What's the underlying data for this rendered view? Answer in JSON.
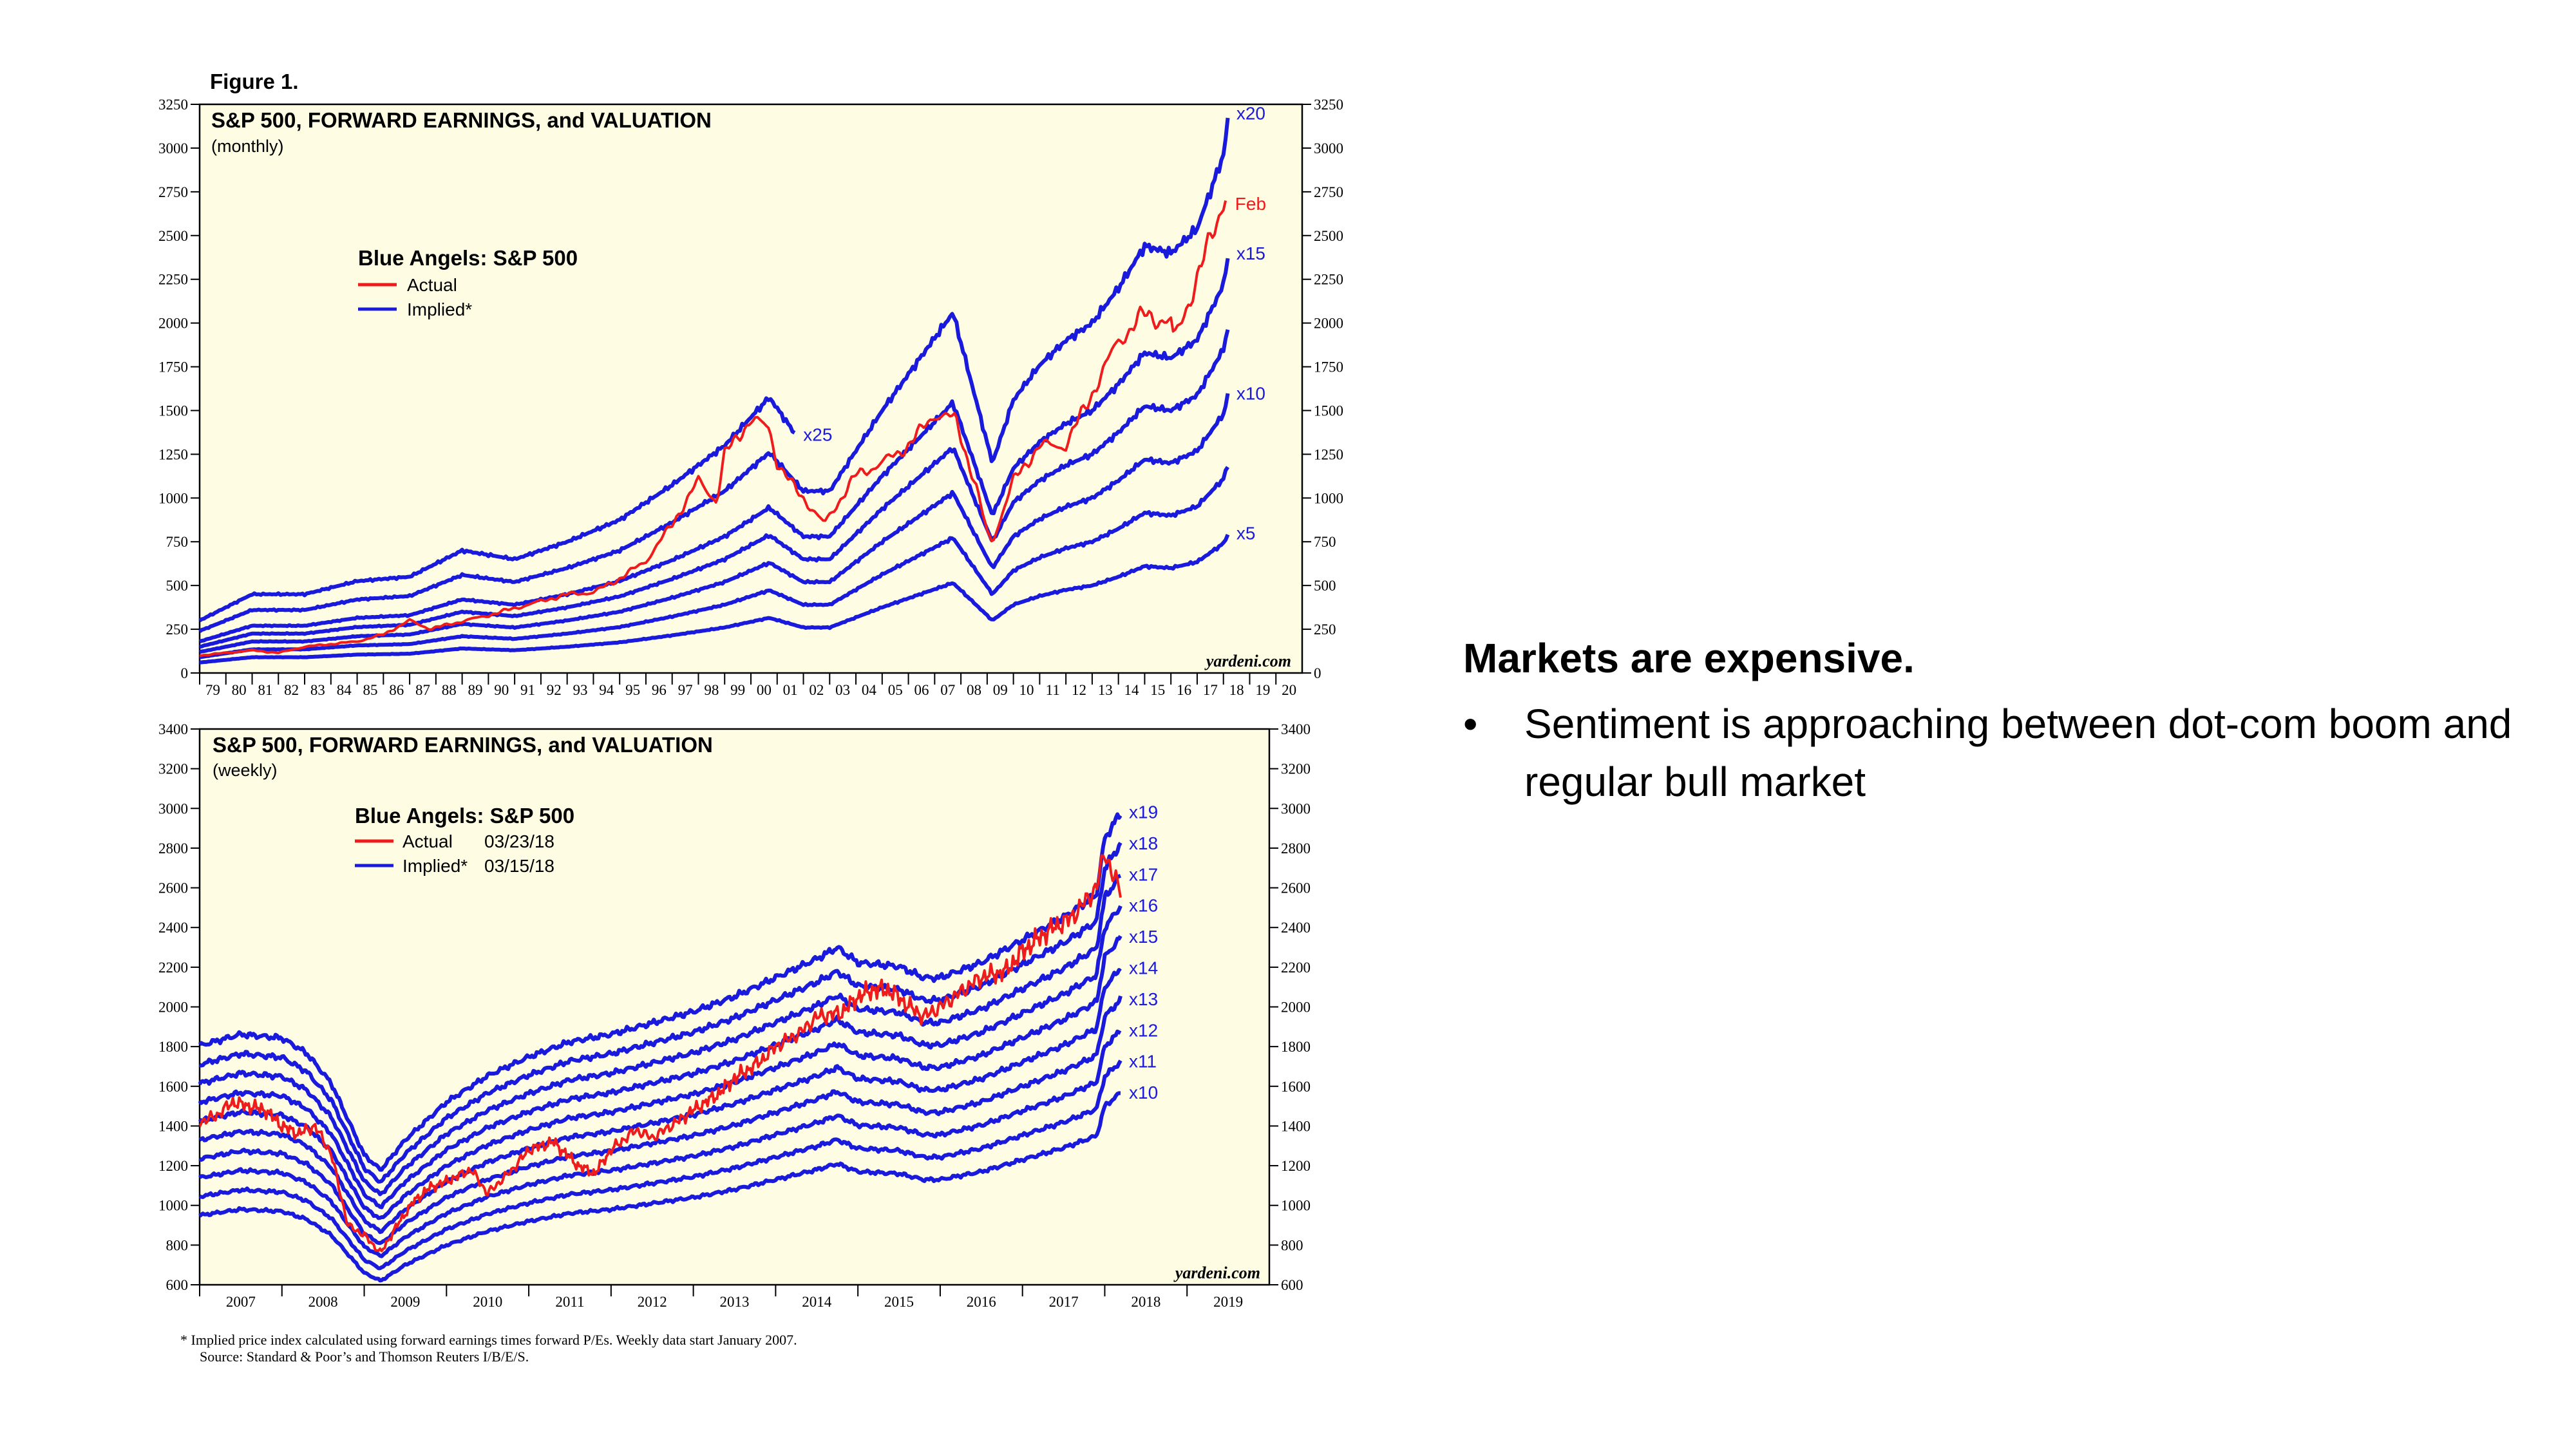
{
  "figure": {
    "label": "Figure 1.",
    "footnote_line1": "*   Implied price index calculated using forward earnings times forward P/Es. Weekly data start January 2007.",
    "footnote_line2": "Source: Standard & Poor’s and Thomson Reuters I/B/E/S."
  },
  "side": {
    "heading": "Markets are expensive.",
    "bullet_symbol": "•",
    "bullets": [
      "Sentiment is approaching between dot-com boom and regular bull market"
    ]
  },
  "colors": {
    "actual": "#ee1c1c",
    "implied": "#1a1adc",
    "panel_bg": "#fefde3",
    "text_blue": "#1a1adc"
  },
  "chart_data": [
    {
      "type": "line",
      "title": "S&P 500, FORWARD EARNINGS, and VALUATION",
      "subtitle": "(monthly)",
      "legend_title": "Blue Angels: S&P 500",
      "legend": [
        "Actual",
        "Implied*"
      ],
      "watermark": "yardeni.com",
      "x_tick_labels": [
        "79",
        "80",
        "81",
        "82",
        "83",
        "84",
        "85",
        "86",
        "87",
        "88",
        "89",
        "90",
        "91",
        "92",
        "93",
        "94",
        "95",
        "96",
        "97",
        "98",
        "99",
        "00",
        "01",
        "02",
        "03",
        "04",
        "05",
        "06",
        "07",
        "08",
        "09",
        "10",
        "11",
        "12",
        "13",
        "14",
        "15",
        "16",
        "17",
        "18",
        "19",
        "20"
      ],
      "xlim": [
        1979,
        2021
      ],
      "ylim": [
        0,
        3250
      ],
      "y_ticks": [
        0,
        250,
        500,
        750,
        1000,
        1250,
        1500,
        1750,
        2000,
        2250,
        2500,
        2750,
        3000,
        3250
      ],
      "grid": false,
      "legend_position": "upper-left",
      "forward_earnings": {
        "x": [
          1979,
          1981,
          1983,
          1985,
          1987,
          1989,
          1991,
          1993,
          1995,
          1997,
          1999,
          2000.7,
          2002,
          2003,
          2005,
          2007.7,
          2009.2,
          2010,
          2011,
          2012,
          2013,
          2014,
          2015,
          2016,
          2017,
          2018,
          2018.2
        ],
        "values": [
          12,
          18,
          18,
          21,
          22,
          28,
          26,
          30,
          35,
          43,
          52,
          63,
          52,
          52,
          75,
          103,
          60,
          78,
          88,
          95,
          100,
          110,
          122,
          120,
          127,
          148,
          160
        ]
      },
      "multiples": [
        {
          "name": "x5",
          "multiple": 5,
          "end_x": 2018.2
        },
        {
          "name": "x10",
          "multiple": 10,
          "end_x": 2018.2
        },
        {
          "name": "x15",
          "multiple": 15,
          "end_x": 2018.2
        },
        {
          "name": "x20",
          "multiple": 20,
          "end_x": 2018.2
        },
        {
          "name": "x25",
          "multiple": 25,
          "end_x": 2001.7
        }
      ],
      "unlabeled_multiples": [
        7.5,
        12.5
      ],
      "series": [
        {
          "name": "Actual",
          "end_label": "Feb",
          "x": [
            1979,
            1981,
            1982,
            1983,
            1985,
            1986,
            1987,
            1987.8,
            1988,
            1990,
            1991,
            1993,
            1994,
            1995,
            1996,
            1997,
            1998,
            1998.7,
            1999,
            2000,
            2000.7,
            2001,
            2001.7,
            2002,
            2002.8,
            2003,
            2004,
            2005,
            2006,
            2007,
            2007.8,
            2008,
            2008.6,
            2009,
            2009.2,
            2010,
            2011,
            2012,
            2013,
            2014,
            2015,
            2016,
            2016.1,
            2017,
            2018,
            2018.1
          ],
          "values": [
            100,
            130,
            115,
            150,
            180,
            220,
            300,
            250,
            260,
            330,
            370,
            450,
            460,
            540,
            640,
            850,
            1100,
            980,
            1250,
            1450,
            1400,
            1200,
            1050,
            1000,
            850,
            900,
            1130,
            1200,
            1300,
            1480,
            1450,
            1350,
            1050,
            800,
            750,
            1100,
            1300,
            1300,
            1600,
            1900,
            2050,
            2000,
            1900,
            2250,
            2700,
            2750
          ]
        }
      ]
    },
    {
      "type": "line",
      "title": "S&P 500, FORWARD EARNINGS, and VALUATION",
      "subtitle": "(weekly)",
      "legend_title": "Blue Angels: S&P 500",
      "legend": [
        {
          "label": "Actual",
          "date": "03/23/18"
        },
        {
          "label": "Implied*",
          "date": "03/15/18"
        }
      ],
      "watermark": "yardeni.com",
      "x_tick_labels": [
        "2007",
        "2008",
        "2009",
        "2010",
        "2011",
        "2012",
        "2013",
        "2014",
        "2015",
        "2016",
        "2017",
        "2018",
        "2019"
      ],
      "xlim": [
        2007,
        2020
      ],
      "ylim": [
        600,
        3400
      ],
      "y_ticks": [
        600,
        800,
        1000,
        1200,
        1400,
        1600,
        1800,
        2000,
        2200,
        2400,
        2600,
        2800,
        3000,
        3200,
        3400
      ],
      "grid": false,
      "legend_position": "upper-left",
      "forward_earnings": {
        "x": [
          2007,
          2007.5,
          2008,
          2008.3,
          2008.6,
          2009,
          2009.2,
          2009.5,
          2010,
          2010.5,
          2011,
          2011.5,
          2012,
          2012.5,
          2013,
          2013.5,
          2014,
          2014.5,
          2014.75,
          2015,
          2015.5,
          2015.8,
          2016,
          2016.5,
          2017,
          2017.5,
          2017.9,
          2018,
          2018.2
        ],
        "values": [
          95,
          98,
          97,
          93,
          85,
          66,
          62,
          70,
          80,
          87,
          92,
          96,
          98,
          101,
          104,
          108,
          113,
          118,
          121,
          117,
          116,
          113,
          113,
          117,
          123,
          129,
          135,
          150,
          157
        ]
      },
      "multiples": [
        {
          "name": "x10",
          "multiple": 10
        },
        {
          "name": "x11",
          "multiple": 11
        },
        {
          "name": "x12",
          "multiple": 12
        },
        {
          "name": "x13",
          "multiple": 13
        },
        {
          "name": "x14",
          "multiple": 14
        },
        {
          "name": "x15",
          "multiple": 15
        },
        {
          "name": "x16",
          "multiple": 16
        },
        {
          "name": "x17",
          "multiple": 17
        },
        {
          "name": "x18",
          "multiple": 18
        },
        {
          "name": "x19",
          "multiple": 19
        }
      ],
      "series": [
        {
          "name": "Actual",
          "x": [
            2007,
            2007.2,
            2007.4,
            2007.6,
            2007.8,
            2008,
            2008.2,
            2008.4,
            2008.6,
            2008.8,
            2009,
            2009.2,
            2009.4,
            2009.6,
            2009.8,
            2010,
            2010.3,
            2010.5,
            2010.8,
            2011,
            2011.3,
            2011.6,
            2011.8,
            2012,
            2012.3,
            2012.5,
            2012.8,
            2013,
            2013.3,
            2013.5,
            2013.8,
            2014,
            2014.3,
            2014.5,
            2014.8,
            2015,
            2015.2,
            2015.4,
            2015.6,
            2015.8,
            2016,
            2016.2,
            2016.5,
            2016.8,
            2017,
            2017.3,
            2017.6,
            2017.9,
            2018,
            2018.1,
            2018.2
          ],
          "values": [
            1420,
            1450,
            1520,
            1500,
            1480,
            1400,
            1360,
            1400,
            1260,
            900,
            850,
            760,
            900,
            1020,
            1090,
            1120,
            1180,
            1060,
            1180,
            1280,
            1320,
            1200,
            1160,
            1280,
            1380,
            1340,
            1420,
            1480,
            1560,
            1640,
            1720,
            1800,
            1870,
            1950,
            1970,
            2050,
            2090,
            2080,
            2010,
            1950,
            2000,
            2060,
            2150,
            2180,
            2280,
            2380,
            2450,
            2600,
            2790,
            2650,
            2600
          ]
        }
      ]
    }
  ]
}
